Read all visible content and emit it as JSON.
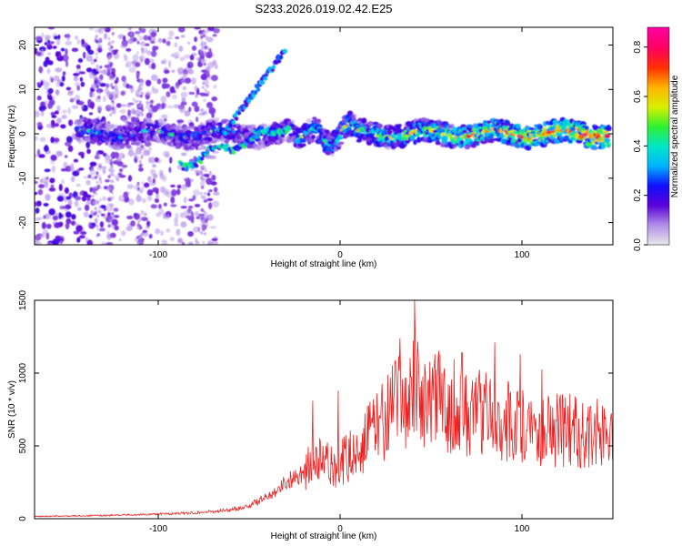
{
  "title": "S233.2026.019.02.42.E25",
  "chart_data": [
    {
      "type": "heatmap",
      "xlabel": "Height of straight line (km)",
      "ylabel": "Frequency (Hz)",
      "xlim": [
        -168,
        150
      ],
      "ylim": [
        -25,
        24
      ],
      "xticks": [
        -100,
        0,
        100
      ],
      "yticks": [
        -20,
        -10,
        0,
        10,
        20
      ],
      "colorbar": {
        "label": "Normalized spectral amplitude",
        "range": [
          0,
          0.88
        ],
        "ticks": [
          0.0,
          0.2,
          0.4,
          0.6,
          0.8
        ],
        "colors": [
          "#e8e8e8",
          "#b08ce8",
          "#5a00d8",
          "#1010ff",
          "#00b4ff",
          "#00e6c8",
          "#30f030",
          "#d8f000",
          "#ffb400",
          "#ff3000",
          "#ff0060",
          "#ff00a0"
        ]
      },
      "features": [
        {
          "name": "main-band",
          "x_range": [
            -145,
            148
          ],
          "freq_hz": 0
        },
        {
          "name": "rising-streak",
          "x_range": [
            -64,
            -30
          ],
          "freq_range_hz": [
            0,
            19
          ]
        },
        {
          "name": "lower-branch",
          "x_range": [
            -88,
            -28
          ],
          "freq_range_hz": [
            -8,
            2
          ]
        }
      ]
    },
    {
      "type": "line",
      "xlabel": "Height of straight line (km)",
      "ylabel": "SNR (10 * v/v)",
      "xlim": [
        -168,
        150
      ],
      "ylim": [
        0,
        1500
      ],
      "xticks": [
        -100,
        0,
        100
      ],
      "yticks": [
        0,
        500,
        1000,
        1500
      ],
      "color": "#ee2020",
      "x": [
        -168,
        -150,
        -130,
        -110,
        -90,
        -75,
        -60,
        -50,
        -40,
        -30,
        -20,
        -15,
        -10,
        -5,
        0,
        5,
        10,
        15,
        20,
        25,
        30,
        35,
        40,
        45,
        50,
        55,
        60,
        65,
        70,
        75,
        80,
        85,
        90,
        95,
        100,
        105,
        110,
        115,
        120,
        125,
        130,
        135,
        140,
        145,
        150
      ],
      "y": [
        15,
        18,
        22,
        28,
        35,
        45,
        60,
        90,
        150,
        250,
        320,
        380,
        400,
        350,
        380,
        420,
        500,
        560,
        640,
        700,
        760,
        820,
        900,
        860,
        780,
        820,
        760,
        800,
        700,
        740,
        760,
        720,
        680,
        650,
        640,
        660,
        620,
        640,
        600,
        610,
        590,
        600,
        580,
        590,
        600
      ],
      "peaks": [
        [
          -15,
          810
        ],
        [
          -1,
          880
        ],
        [
          33,
          1240
        ],
        [
          41,
          1500
        ],
        [
          54,
          1100
        ],
        [
          67,
          1140
        ],
        [
          85,
          1210
        ],
        [
          99,
          1130
        ],
        [
          111,
          1025
        ],
        [
          121,
          850
        ]
      ]
    }
  ]
}
